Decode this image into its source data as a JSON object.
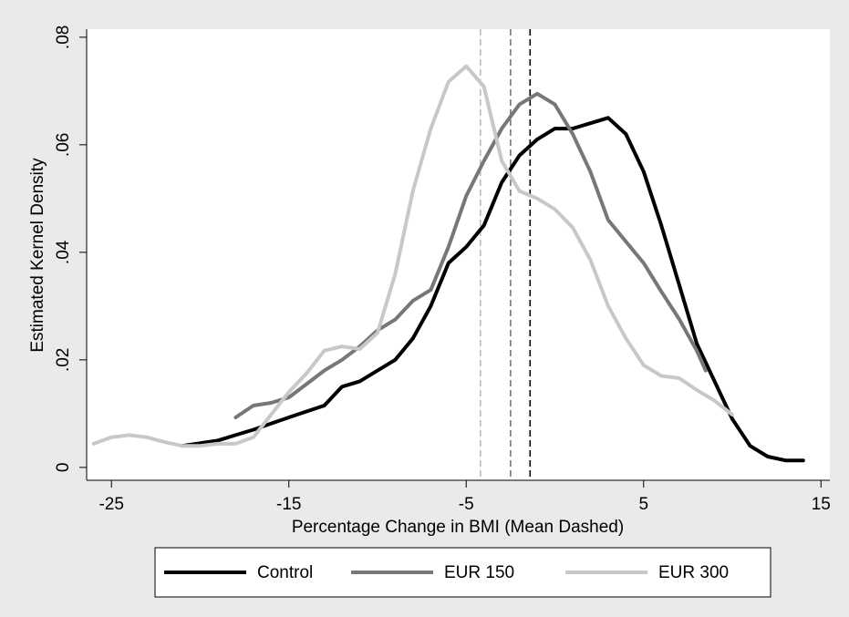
{
  "chart_data": {
    "type": "line",
    "xlabel": "Percentage Change in BMI (Mean Dashed)",
    "ylabel": "Estimated Kernel Density",
    "xlim": [
      -26.4,
      15.5
    ],
    "ylim": [
      -0.0024,
      0.0815
    ],
    "xticks": [
      -25,
      -15,
      -5,
      5,
      15
    ],
    "yticks": [
      0,
      {
        "value": 0.02,
        "label": ".02"
      },
      {
        "value": 0.04,
        "label": ".04"
      },
      {
        "value": 0.06,
        "label": ".06"
      },
      {
        "value": 0.08,
        "label": ".08"
      }
    ],
    "legend": "bottom",
    "series": [
      {
        "name": "Control",
        "color": "#000000",
        "mean": -1.4,
        "x": [
          -21,
          -19,
          -17,
          -15,
          -13,
          -12,
          -11,
          -10,
          -9,
          -8,
          -7,
          -6,
          -5,
          -4,
          -3,
          -2,
          -1,
          0,
          1,
          2,
          3,
          4,
          5,
          6,
          7,
          8,
          9,
          10,
          11,
          12,
          13,
          14
        ],
        "values": [
          0.004,
          0.005,
          0.007,
          0.0093,
          0.0115,
          0.015,
          0.016,
          0.018,
          0.02,
          0.024,
          0.03,
          0.038,
          0.041,
          0.045,
          0.053,
          0.058,
          0.061,
          0.063,
          0.063,
          0.064,
          0.065,
          0.062,
          0.055,
          0.045,
          0.034,
          0.023,
          0.016,
          0.009,
          0.004,
          0.002,
          0.0013,
          0.0013
        ]
      },
      {
        "name": "EUR 150",
        "color": "#777777",
        "mean": -2.5,
        "x": [
          -18,
          -17,
          -16,
          -15,
          -14,
          -13,
          -12,
          -11,
          -10,
          -9,
          -8,
          -7,
          -6,
          -5,
          -4,
          -3,
          -2,
          -1,
          0,
          1,
          2,
          3,
          4,
          5,
          6,
          7,
          8,
          8.5
        ],
        "values": [
          0.0093,
          0.0115,
          0.012,
          0.013,
          0.0155,
          0.018,
          0.02,
          0.0225,
          0.0255,
          0.0275,
          0.031,
          0.033,
          0.041,
          0.0505,
          0.057,
          0.063,
          0.0675,
          0.0695,
          0.0675,
          0.062,
          0.055,
          0.046,
          0.042,
          0.038,
          0.0327,
          0.0276,
          0.0217,
          0.018
        ]
      },
      {
        "name": "EUR 300",
        "color": "#c8c8c8",
        "mean": -4.2,
        "x": [
          -26,
          -25,
          -24,
          -23,
          -22,
          -21,
          -20,
          -19,
          -18,
          -17,
          -16,
          -15,
          -14,
          -13,
          -12,
          -11,
          -10,
          -9,
          -8,
          -7,
          -6,
          -5,
          -4,
          -3,
          -2,
          -1,
          0,
          1,
          2,
          3,
          4,
          5,
          6,
          7,
          8,
          9,
          10
        ],
        "values": [
          0.0044,
          0.0056,
          0.006,
          0.0056,
          0.0047,
          0.004,
          0.004,
          0.0044,
          0.0044,
          0.0056,
          0.0098,
          0.014,
          0.0175,
          0.0217,
          0.0225,
          0.022,
          0.025,
          0.036,
          0.0515,
          0.063,
          0.0717,
          0.0746,
          0.0708,
          0.057,
          0.0514,
          0.05,
          0.048,
          0.0446,
          0.0386,
          0.03,
          0.024,
          0.019,
          0.017,
          0.0166,
          0.0144,
          0.0124,
          0.0098
        ]
      }
    ]
  }
}
